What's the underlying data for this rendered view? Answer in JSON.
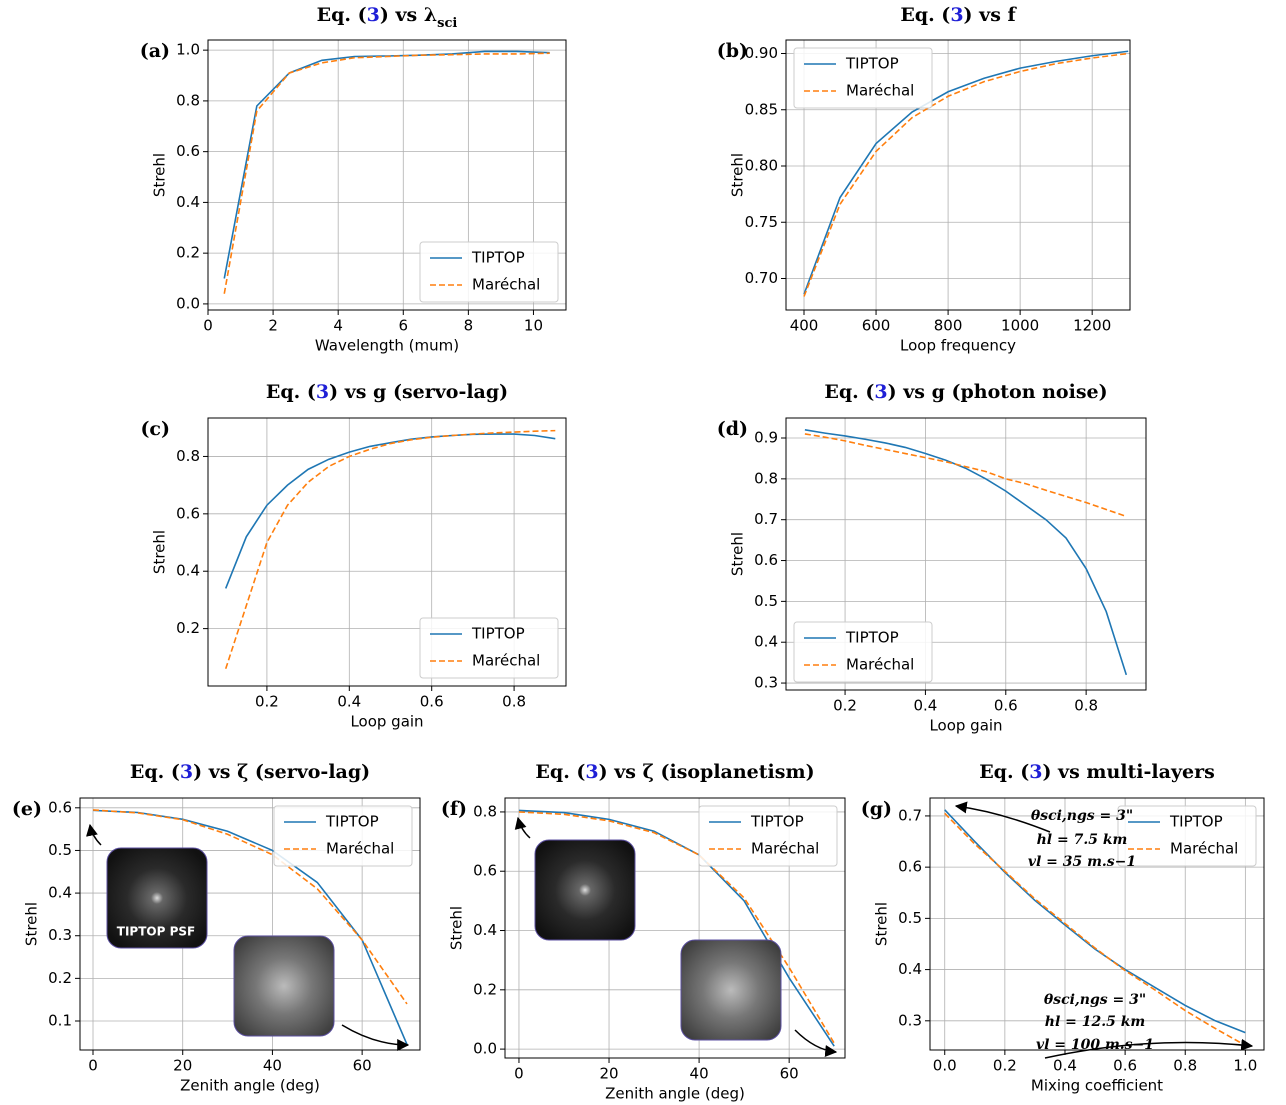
{
  "chart_data": [
    {
      "type": "line",
      "label": "(a)",
      "title": [
        "Eq. (",
        "3",
        ") vs λ",
        "sci"
      ],
      "xlabel": "Wavelength (mum)",
      "ylabel": "Strehl",
      "x": [
        0.5,
        1.5,
        2.5,
        3.5,
        4.5,
        5.5,
        6.5,
        7.5,
        8.5,
        9.5,
        10.5
      ],
      "series": [
        {
          "name": "TIPTOP",
          "color": "#1f77b4",
          "linestyle": "solid",
          "values": [
            0.1,
            0.78,
            0.91,
            0.96,
            0.975,
            0.977,
            0.98,
            0.985,
            0.995,
            0.995,
            0.99
          ]
        },
        {
          "name": "Maréchal",
          "color": "#ff7f0e",
          "linestyle": "dashed",
          "values": [
            0.04,
            0.76,
            0.91,
            0.95,
            0.97,
            0.975,
            0.98,
            0.982,
            0.985,
            0.985,
            0.988
          ]
        }
      ],
      "xlim": [
        0,
        11
      ],
      "ylim": [
        -0.024,
        1.04
      ],
      "xticks": [
        0,
        2,
        4,
        6,
        8,
        10
      ],
      "yticks": [
        {
          "value": 0,
          "label": "0.0"
        },
        0.2,
        0.4,
        0.6,
        0.8,
        {
          "value": 1,
          "label": "1.0"
        }
      ],
      "grid": true,
      "legend": "lower right"
    },
    {
      "type": "line",
      "label": "(b)",
      "title": [
        "Eq. (",
        "3",
        ") vs f"
      ],
      "xlabel": "Loop frequency",
      "ylabel": "Strehl",
      "x": [
        400,
        500,
        600,
        700,
        800,
        900,
        1000,
        1100,
        1200,
        1300
      ],
      "series": [
        {
          "name": "TIPTOP",
          "color": "#1f77b4",
          "linestyle": "solid",
          "values": [
            0.686,
            0.772,
            0.82,
            0.848,
            0.866,
            0.878,
            0.887,
            0.893,
            0.898,
            0.902
          ]
        },
        {
          "name": "Maréchal",
          "color": "#ff7f0e",
          "linestyle": "dashed",
          "values": [
            0.684,
            0.766,
            0.813,
            0.843,
            0.862,
            0.875,
            0.884,
            0.891,
            0.896,
            0.9
          ]
        }
      ],
      "xlim": [
        350,
        1305
      ],
      "ylim": [
        0.672,
        0.912
      ],
      "xticks": [
        400,
        600,
        800,
        1000,
        1200
      ],
      "yticks": [
        {
          "value": 0.7,
          "label": "0.70"
        },
        0.75,
        {
          "value": 0.8,
          "label": "0.80"
        },
        0.85,
        {
          "value": 0.9,
          "label": "0.90"
        }
      ],
      "grid": true,
      "legend": "upper left"
    },
    {
      "type": "line",
      "label": "(c)",
      "title": [
        "Eq. (",
        "3",
        ") vs g (servo-lag)"
      ],
      "xlabel": "Loop gain",
      "ylabel": "Strehl",
      "x": [
        0.1,
        0.15,
        0.2,
        0.25,
        0.3,
        0.35,
        0.4,
        0.45,
        0.5,
        0.55,
        0.6,
        0.65,
        0.7,
        0.75,
        0.8,
        0.85,
        0.9
      ],
      "series": [
        {
          "name": "TIPTOP",
          "color": "#1f77b4",
          "linestyle": "solid",
          "values": [
            0.34,
            0.52,
            0.63,
            0.7,
            0.755,
            0.79,
            0.815,
            0.835,
            0.848,
            0.86,
            0.868,
            0.873,
            0.877,
            0.878,
            0.878,
            0.873,
            0.862
          ]
        },
        {
          "name": "Maréchal",
          "color": "#ff7f0e",
          "linestyle": "dashed",
          "values": [
            0.06,
            0.28,
            0.5,
            0.63,
            0.71,
            0.765,
            0.8,
            0.825,
            0.845,
            0.858,
            0.867,
            0.873,
            0.878,
            0.882,
            0.885,
            0.888,
            0.89
          ]
        }
      ],
      "xlim": [
        0.057,
        0.926
      ],
      "ylim": [
        0,
        0.934
      ],
      "xticks": [
        0.2,
        0.4,
        0.6,
        0.8
      ],
      "yticks": [
        0.2,
        0.4,
        0.6,
        0.8
      ],
      "grid": true,
      "legend": "lower right"
    },
    {
      "type": "line",
      "label": "(d)",
      "title": [
        "Eq. (",
        "3",
        ") vs g (photon noise)"
      ],
      "xlabel": "Loop gain",
      "ylabel": "Strehl",
      "x": [
        0.1,
        0.15,
        0.2,
        0.25,
        0.3,
        0.35,
        0.4,
        0.45,
        0.5,
        0.55,
        0.6,
        0.65,
        0.7,
        0.75,
        0.8,
        0.85,
        0.9
      ],
      "series": [
        {
          "name": "TIPTOP",
          "color": "#1f77b4",
          "linestyle": "solid",
          "values": [
            0.92,
            0.912,
            0.905,
            0.897,
            0.888,
            0.877,
            0.862,
            0.846,
            0.826,
            0.8,
            0.77,
            0.735,
            0.7,
            0.655,
            0.58,
            0.475,
            0.32
          ]
        },
        {
          "name": "Maréchal",
          "color": "#ff7f0e",
          "linestyle": "dashed",
          "values": [
            0.91,
            0.902,
            0.893,
            0.882,
            0.872,
            0.862,
            0.852,
            0.842,
            0.83,
            0.818,
            0.8,
            0.788,
            0.772,
            0.757,
            0.742,
            0.725,
            0.708
          ]
        }
      ],
      "xlim": [
        0.053,
        0.949
      ],
      "ylim": [
        0.283,
        0.949
      ],
      "xticks": [
        0.2,
        0.4,
        0.6,
        0.8
      ],
      "yticks": [
        0.3,
        0.4,
        0.5,
        0.6,
        0.7,
        0.8,
        0.9
      ],
      "grid": true,
      "legend": "lower left"
    },
    {
      "type": "line",
      "label": "(e)",
      "title": [
        "Eq. (",
        "3",
        ") vs ζ (servo-lag)"
      ],
      "xlabel": "Zenith angle (deg)",
      "ylabel": "Strehl",
      "x": [
        0,
        10,
        20,
        30,
        40,
        50,
        60,
        70
      ],
      "series": [
        {
          "name": "TIPTOP",
          "color": "#1f77b4",
          "linestyle": "solid",
          "values": [
            0.594,
            0.589,
            0.573,
            0.545,
            0.5,
            0.425,
            0.29,
            0.045
          ]
        },
        {
          "name": "Maréchal",
          "color": "#ff7f0e",
          "linestyle": "dashed",
          "values": [
            0.595,
            0.588,
            0.572,
            0.538,
            0.49,
            0.41,
            0.29,
            0.14
          ]
        }
      ],
      "xlim": [
        -2.9,
        72.9
      ],
      "ylim": [
        0.032,
        0.623
      ],
      "xticks": [
        0,
        20,
        40,
        60
      ],
      "yticks": [
        0.1,
        0.2,
        0.3,
        0.4,
        0.5,
        0.6
      ],
      "grid": true,
      "legend": "upper right",
      "annotations": [
        "TIPTOP PSF"
      ]
    },
    {
      "type": "line",
      "label": "(f)",
      "title": [
        "Eq. (",
        "3",
        ") vs ζ (isoplanetism)"
      ],
      "xlabel": "Zenith angle (deg)",
      "ylabel": "Strehl",
      "x": [
        0,
        10,
        20,
        30,
        40,
        50,
        60,
        70
      ],
      "series": [
        {
          "name": "TIPTOP",
          "color": "#1f77b4",
          "linestyle": "solid",
          "values": [
            0.805,
            0.798,
            0.775,
            0.735,
            0.655,
            0.5,
            0.24,
            0.01
          ]
        },
        {
          "name": "Maréchal",
          "color": "#ff7f0e",
          "linestyle": "dashed",
          "values": [
            0.8,
            0.792,
            0.77,
            0.73,
            0.655,
            0.51,
            0.275,
            0.02
          ]
        }
      ],
      "xlim": [
        -3.1,
        72.4
      ],
      "ylim": [
        -0.03,
        0.847
      ],
      "xticks": [
        0,
        20,
        40,
        60
      ],
      "yticks": [
        {
          "value": 0,
          "label": "0.0"
        },
        0.2,
        0.4,
        0.6,
        0.8
      ],
      "grid": true,
      "legend": "upper right"
    },
    {
      "type": "line",
      "label": "(g)",
      "title": [
        "Eq. (",
        "3",
        ") vs multi-layers"
      ],
      "xlabel": "Mixing coefficient",
      "ylabel": "Strehl",
      "x": [
        0,
        0.1,
        0.2,
        0.3,
        0.4,
        0.5,
        0.6,
        0.7,
        0.8,
        0.9,
        1.0
      ],
      "series": [
        {
          "name": "TIPTOP",
          "color": "#1f77b4",
          "linestyle": "solid",
          "values": [
            0.712,
            0.65,
            0.59,
            0.535,
            0.487,
            0.44,
            0.4,
            0.365,
            0.33,
            0.3,
            0.277
          ]
        },
        {
          "name": "Maréchal",
          "color": "#ff7f0e",
          "linestyle": "dashed",
          "values": [
            0.705,
            0.645,
            0.592,
            0.538,
            0.49,
            0.442,
            0.398,
            0.36,
            0.32,
            0.285,
            0.252
          ]
        }
      ],
      "xlim": [
        -0.049,
        1.062
      ],
      "ylim": [
        0.243,
        0.735
      ],
      "xticks": [
        {
          "value": 0,
          "label": "0.0"
        },
        0.2,
        0.4,
        0.6,
        0.8,
        {
          "value": 1,
          "label": "1.0"
        }
      ],
      "yticks": [
        0.3,
        0.4,
        0.5,
        0.6,
        0.7
      ],
      "grid": true,
      "legend": "upper right",
      "annotations": [
        "θsci,ngs = 3\"",
        "hl = 7.5 km",
        "vl = 35 m.s−1",
        "θsci,ngs = 3\"",
        "hl = 12.5 km",
        "vl = 100 m.s−1"
      ]
    }
  ]
}
